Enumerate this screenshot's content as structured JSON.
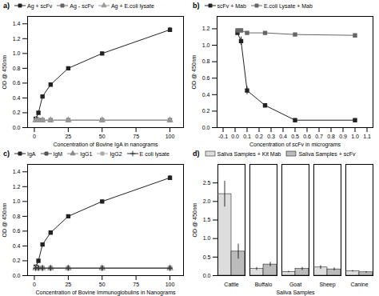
{
  "chart_data": [
    {
      "type": "line",
      "title": "a)",
      "xlabel": "Concentration of Bovine IgA in nanograms",
      "ylabel": "OD @ 450nm",
      "xlim": [
        -5,
        110
      ],
      "ylim": [
        0.0,
        1.5
      ],
      "xticks": [
        0,
        25,
        50,
        75,
        100
      ],
      "yticks": [
        {
          "value": 0.0,
          "label": "0.0"
        },
        0.2,
        0.4,
        0.6,
        0.8,
        {
          "value": 1.0,
          "label": "1.0"
        },
        1.2,
        1.4
      ],
      "series": [
        {
          "name": "Ag + scFv",
          "color": "#222222",
          "marker": "square",
          "line_style": "solid",
          "x": [
            1,
            3,
            6,
            12,
            25,
            50,
            100
          ],
          "values": [
            0.12,
            0.2,
            0.42,
            0.58,
            0.8,
            1.0,
            1.32
          ],
          "errors": [
            0.01,
            0.01,
            0.02,
            0.02,
            0.02,
            0.02,
            0.03
          ]
        },
        {
          "name": "Ag - scFv",
          "color": "#666666",
          "marker": "square",
          "line_style": "solid",
          "x": [
            1,
            3,
            6,
            12,
            25,
            50,
            100
          ],
          "values": [
            0.1,
            0.1,
            0.1,
            0.1,
            0.1,
            0.1,
            0.1
          ],
          "errors": [
            0.005,
            0.005,
            0.005,
            0.005,
            0.005,
            0.005,
            0.005
          ]
        },
        {
          "name": "Ag + E.coli lysate",
          "color": "#999999",
          "marker": "triangle",
          "line_style": "solid",
          "x": [
            1,
            3,
            6,
            12,
            25,
            50,
            100
          ],
          "values": [
            0.1,
            0.1,
            0.1,
            0.1,
            0.1,
            0.1,
            0.1
          ],
          "errors": [
            0.005,
            0.005,
            0.005,
            0.005,
            0.005,
            0.005,
            0.005
          ]
        }
      ]
    },
    {
      "type": "line",
      "title": "b)",
      "xlabel": "Concentration of scFv in micrograms",
      "ylabel": "OD @ 450nm",
      "xlim": [
        -0.15,
        1.15
      ],
      "ylim": [
        0.0,
        1.35
      ],
      "xticks": [
        -0.1,
        {
          "value": 0.0,
          "label": "0.0"
        },
        0.1,
        0.2,
        0.3,
        0.4,
        0.5,
        0.6,
        0.7,
        0.8,
        0.9,
        {
          "value": 1.0,
          "label": "1.0"
        },
        1.1
      ],
      "yticks": [
        {
          "value": 0.0,
          "label": "0.0"
        },
        0.2,
        0.4,
        0.6,
        0.8,
        {
          "value": 1.0,
          "label": "1.0"
        },
        1.2
      ],
      "series": [
        {
          "name": "scFv + Mab",
          "color": "#222222",
          "marker": "square",
          "line_style": "solid",
          "x": [
            0.02,
            0.05,
            0.1,
            0.25,
            0.5,
            1.0
          ],
          "values": [
            1.15,
            1.05,
            0.45,
            0.27,
            0.09,
            0.09
          ],
          "errors": [
            0.02,
            0.05,
            0.05,
            0.02,
            0.01,
            0.01
          ]
        },
        {
          "name": "E.coli Lysate + Mab",
          "color": "#666666",
          "marker": "square",
          "line_style": "solid",
          "x": [
            0.02,
            0.05,
            0.1,
            0.25,
            0.5,
            1.0
          ],
          "values": [
            1.18,
            1.18,
            1.15,
            1.15,
            1.13,
            1.12
          ],
          "errors": [
            0.01,
            0.01,
            0.01,
            0.01,
            0.01,
            0.01
          ]
        }
      ]
    },
    {
      "type": "line",
      "title": "c)",
      "xlabel": "Concentration of Bovine Immunoglobulins in Nanograms",
      "ylabel": "OD @ 450nm",
      "xlim": [
        -5,
        110
      ],
      "ylim": [
        0.0,
        1.5
      ],
      "xticks": [
        0,
        25,
        50,
        75,
        100
      ],
      "yticks": [
        {
          "value": 0.0,
          "label": "0.0"
        },
        0.2,
        0.4,
        0.6,
        0.8,
        {
          "value": 1.0,
          "label": "1.0"
        },
        1.2,
        1.4
      ],
      "series": [
        {
          "name": "IgA",
          "color": "#222222",
          "marker": "square",
          "line_style": "solid",
          "x": [
            1,
            3,
            6,
            12,
            25,
            50,
            100
          ],
          "values": [
            0.12,
            0.2,
            0.42,
            0.58,
            0.8,
            1.0,
            1.32
          ],
          "errors": [
            0.01,
            0.02,
            0.02,
            0.02,
            0.02,
            0.02,
            0.03
          ]
        },
        {
          "name": "IgM",
          "color": "#555555",
          "marker": "square",
          "line_style": "solid",
          "x": [
            1,
            3,
            6,
            12,
            25,
            50,
            100
          ],
          "values": [
            0.1,
            0.1,
            0.1,
            0.1,
            0.1,
            0.1,
            0.1
          ],
          "errors": [
            0.005,
            0.005,
            0.005,
            0.005,
            0.005,
            0.005,
            0.005
          ]
        },
        {
          "name": "IgG1",
          "color": "#888888",
          "marker": "triangle",
          "line_style": "solid",
          "x": [
            1,
            3,
            6,
            12,
            25,
            50,
            100
          ],
          "values": [
            0.1,
            0.1,
            0.1,
            0.1,
            0.1,
            0.1,
            0.1
          ],
          "errors": [
            0.005,
            0.005,
            0.005,
            0.005,
            0.005,
            0.005,
            0.005
          ]
        },
        {
          "name": "IgG2",
          "color": "#aaaaaa",
          "marker": "square",
          "line_style": "solid",
          "x": [
            1,
            3,
            6,
            12,
            25,
            50,
            100
          ],
          "values": [
            0.1,
            0.1,
            0.1,
            0.1,
            0.1,
            0.1,
            0.1
          ],
          "errors": [
            0.005,
            0.005,
            0.005,
            0.005,
            0.005,
            0.005,
            0.005
          ]
        },
        {
          "name": "E coli lysate",
          "color": "#333333",
          "marker": "plus",
          "line_style": "solid",
          "x": [
            1,
            3,
            6,
            12,
            25,
            50,
            100
          ],
          "values": [
            0.1,
            0.1,
            0.1,
            0.1,
            0.1,
            0.1,
            0.1
          ],
          "errors": [
            0.005,
            0.005,
            0.005,
            0.005,
            0.005,
            0.005,
            0.005
          ]
        }
      ]
    },
    {
      "type": "bar",
      "title": "d)",
      "xlabel": "Saliva Samples",
      "ylabel": "OD @ 450nm",
      "categories": [
        "Cattle",
        "Buffalo",
        "Goat",
        "Sheep",
        "Canine"
      ],
      "ylim": [
        0,
        3.0
      ],
      "yticks": [
        {
          "value": 0.0,
          "label": "0.0"
        },
        0.5,
        {
          "value": 1.0,
          "label": "1.0"
        },
        1.5,
        {
          "value": 2.0,
          "label": "2.0"
        },
        2.5
      ],
      "series": [
        {
          "name": "Saliva Samples + Kit Mab",
          "color": "#dddddd",
          "values": [
            2.2,
            0.18,
            0.1,
            0.22,
            0.12
          ],
          "errors": [
            0.35,
            0.04,
            0.02,
            0.05,
            0.02
          ]
        },
        {
          "name": "Saliva Samples + scFv",
          "color": "#bbbbbb",
          "values": [
            0.65,
            0.3,
            0.18,
            0.17,
            0.09
          ],
          "errors": [
            0.2,
            0.06,
            0.04,
            0.04,
            0.02
          ]
        }
      ]
    }
  ]
}
